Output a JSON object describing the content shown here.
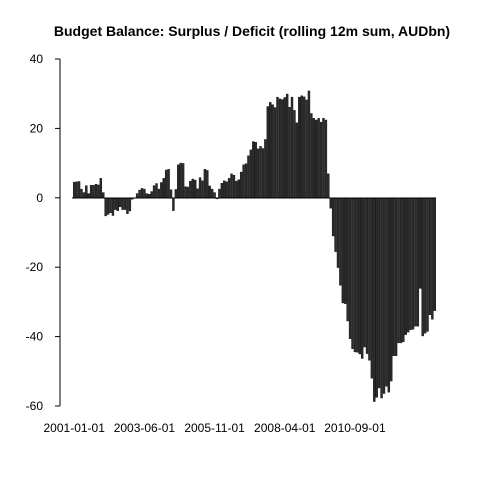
{
  "chart_data": {
    "type": "bar",
    "title": "Budget Balance: Surplus / Deficit (rolling 12m sum, AUDbn)",
    "xlabel": "",
    "ylabel": "",
    "ylim": [
      -60,
      40
    ],
    "y_ticks": [
      40,
      20,
      0,
      -20,
      -40,
      -60
    ],
    "x_tick_labels": [
      "2001-01-01",
      "2003-06-01",
      "2005-11-01",
      "2008-04-01",
      "2010-09-01"
    ],
    "x_tick_index": [
      0,
      29,
      58,
      87,
      116
    ],
    "categories_start": "2001-01",
    "frequency": "monthly",
    "values": [
      4.5,
      4.6,
      4.7,
      2.5,
      1.5,
      3.5,
      1.2,
      3.6,
      3.6,
      3.9,
      3.7,
      5.6,
      1.5,
      -5.2,
      -4.8,
      -4.3,
      -5.1,
      -3.4,
      -3.7,
      -2.6,
      -3.4,
      -3.4,
      -4.6,
      -3.8,
      -0.4,
      0.0,
      1.2,
      2.2,
      2.7,
      2.5,
      1.2,
      1.0,
      1.8,
      3.5,
      4.1,
      2.5,
      4.4,
      5.6,
      8.0,
      8.2,
      2.3,
      -3.7,
      2.4,
      9.5,
      10.0,
      9.9,
      3.2,
      3.1,
      4.8,
      5.4,
      5.1,
      2.6,
      5.8,
      4.9,
      8.2,
      7.9,
      3.4,
      2.5,
      1.5,
      -0.3,
      2.5,
      4.2,
      4.9,
      4.6,
      5.6,
      6.9,
      6.5,
      4.8,
      5.2,
      7.4,
      9.5,
      9.8,
      12.1,
      13.8,
      16.2,
      16.0,
      14.1,
      14.8,
      14.2,
      16.8,
      26.3,
      27.5,
      26.8,
      26.0,
      29.0,
      28.5,
      28.3,
      28.9,
      29.9,
      26.1,
      29.0,
      25.2,
      21.6,
      29.0,
      29.4,
      29.1,
      28.2,
      30.8,
      24.3,
      22.9,
      22.4,
      22.9,
      21.8,
      22.9,
      22.4,
      6.9,
      -3.0,
      -11.0,
      -15.5,
      -20.1,
      -25.2,
      -30.3,
      -30.5,
      -35.5,
      -40.6,
      -43.5,
      -44.4,
      -44.5,
      -45.0,
      -46.3,
      -43.0,
      -44.9,
      -46.8,
      -52.0,
      -58.7,
      -57.5,
      -54.8,
      -57.7,
      -56.4,
      -54.3,
      -56.0,
      -52.8,
      -45.5,
      -45.5,
      -41.8,
      -41.8,
      -41.5,
      -39.4,
      -38.7,
      -38.0,
      -37.9,
      -37.0,
      -37.0,
      -26.1,
      -39.8,
      -39.0,
      -38.5,
      -33.7,
      -35.0,
      -32.5
    ]
  }
}
